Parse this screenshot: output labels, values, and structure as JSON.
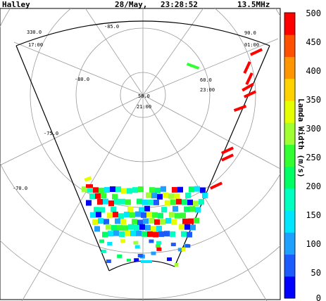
{
  "header": {
    "station": "Halley",
    "date": "28/May,",
    "time": "23:28:52",
    "frequency": "13.5MHz"
  },
  "grid_labels": {
    "longitudes": [
      "330.0",
      "-85.0",
      "90.0",
      "-80.0",
      "50.0",
      "60.0",
      "-75.0",
      "-70.0"
    ],
    "times": [
      "17:00",
      "21:00",
      "01:00",
      "23:00"
    ]
  },
  "colorbar": {
    "title": "Lamda Width (m/s)",
    "ticks": [
      "500",
      "450",
      "400",
      "350",
      "300",
      "250",
      "200",
      "150",
      "100",
      "50",
      "0"
    ],
    "min": 0,
    "max": 500,
    "colors": [
      "#0000ff",
      "#1c5cff",
      "#1ea0ff",
      "#00e6ff",
      "#00ffc0",
      "#00ff64",
      "#32ff32",
      "#a0ff32",
      "#e6ff00",
      "#ffd200",
      "#ff9600",
      "#ff5000",
      "#ff0000"
    ]
  }
}
